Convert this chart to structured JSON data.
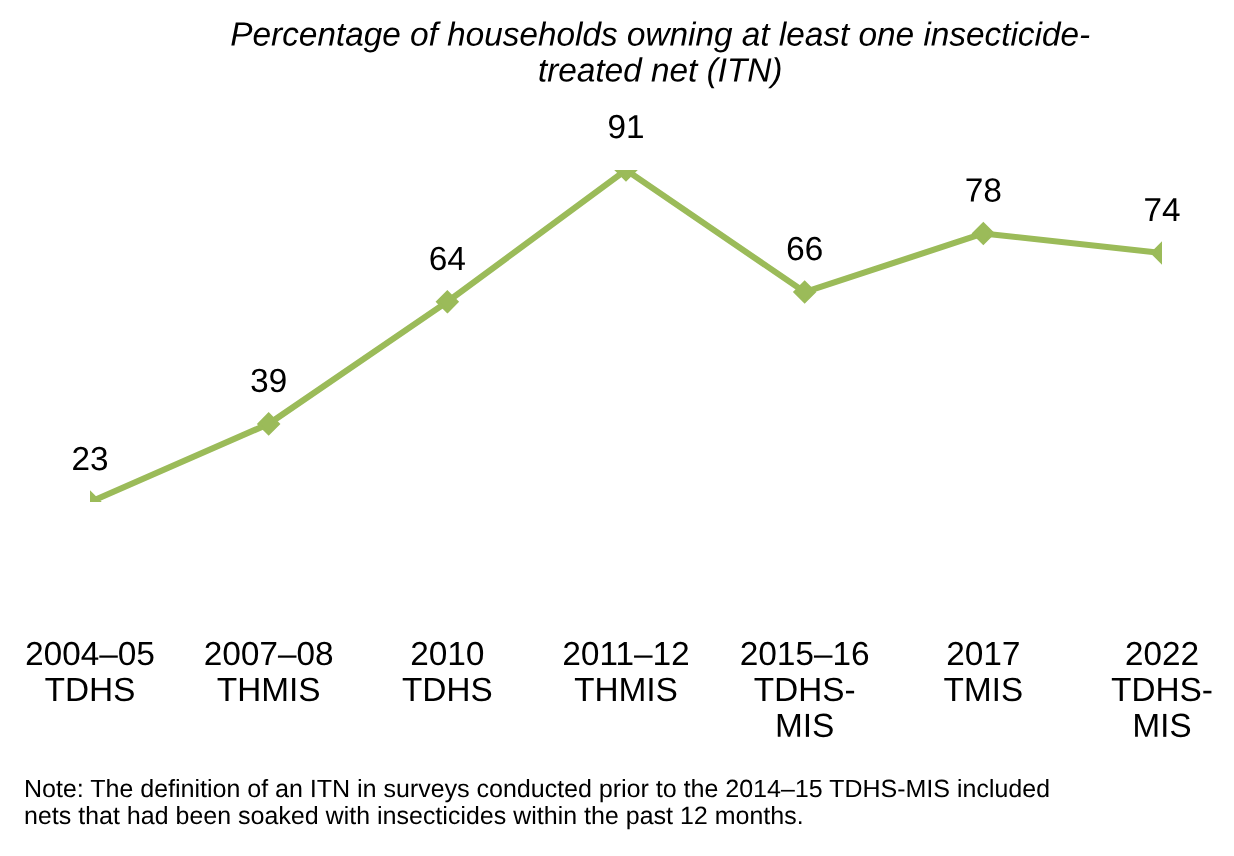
{
  "chart_data": {
    "type": "line",
    "title": "Percentage of households owning at least one insecticide-\ntreated net (ITN)",
    "categories": [
      "2004–05\nTDHS",
      "2007–08\nTHMIS",
      "2010\nTDHS",
      "2011–12\nTHMIS",
      "2015–16\nTDHS-\nMIS",
      "2017\nTMIS",
      "2022\nTDHS-\nMIS"
    ],
    "series": [
      {
        "color": "#9bbb59",
        "values": [
          23,
          39,
          64,
          91,
          66,
          78,
          74
        ]
      }
    ],
    "marker": "diamond",
    "line_style": "solid",
    "data_labels": true,
    "grid": false,
    "legend": false,
    "tick_labels": "x",
    "annotations": [
      "Note: The definition of an ITN in surveys conducted prior to the 2014–15 TDHS-MIS included\nnets that had been soaked with insecticides within the past 12 months."
    ]
  }
}
